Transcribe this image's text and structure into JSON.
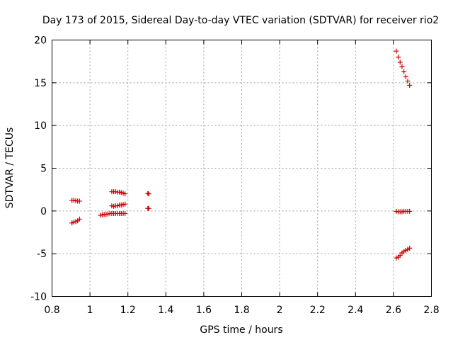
{
  "chart_data": {
    "type": "scatter",
    "title": "Day 173 of 2015, Sidereal Day-to-day VTEC variation (SDTVAR) for receiver rio2",
    "xlabel": "GPS time / hours",
    "ylabel": "SDTVAR / TECUs",
    "xlim": [
      0.8,
      2.8
    ],
    "ylim": [
      -10,
      20
    ],
    "x_ticks": [
      0.8,
      1.0,
      1.2,
      1.4,
      1.6,
      1.8,
      2.0,
      2.2,
      2.4,
      2.6,
      2.8
    ],
    "x_tick_labels": [
      "0.8",
      "1",
      "1.2",
      "1.4",
      "1.6",
      "1.8",
      "2",
      "2.2",
      "2.4",
      "2.6",
      "2.8"
    ],
    "y_ticks": [
      -10,
      -5,
      0,
      5,
      10,
      15,
      20
    ],
    "y_tick_labels": [
      "-10",
      "-5",
      "0",
      "5",
      "10",
      "15",
      "20"
    ],
    "grid": true,
    "marker": "+",
    "color": "#cc0000",
    "series": [
      {
        "name": "rio2",
        "points": [
          [
            0.905,
            1.25
          ],
          [
            0.915,
            1.25
          ],
          [
            0.925,
            1.2
          ],
          [
            0.935,
            1.15
          ],
          [
            0.945,
            1.15
          ],
          [
            0.905,
            -1.4
          ],
          [
            0.915,
            -1.3
          ],
          [
            0.925,
            -1.25
          ],
          [
            0.935,
            -1.15
          ],
          [
            0.945,
            -0.95
          ],
          [
            1.055,
            -0.5
          ],
          [
            1.065,
            -0.45
          ],
          [
            1.075,
            -0.4
          ],
          [
            1.085,
            -0.4
          ],
          [
            1.095,
            -0.35
          ],
          [
            1.105,
            -0.3
          ],
          [
            1.115,
            -0.3
          ],
          [
            1.125,
            -0.3
          ],
          [
            1.135,
            -0.3
          ],
          [
            1.145,
            -0.3
          ],
          [
            1.155,
            -0.3
          ],
          [
            1.165,
            -0.3
          ],
          [
            1.175,
            -0.3
          ],
          [
            1.185,
            -0.3
          ],
          [
            1.115,
            2.25
          ],
          [
            1.125,
            2.25
          ],
          [
            1.135,
            2.25
          ],
          [
            1.145,
            2.2
          ],
          [
            1.155,
            2.2
          ],
          [
            1.165,
            2.15
          ],
          [
            1.175,
            2.1
          ],
          [
            1.185,
            2.0
          ],
          [
            1.115,
            0.6
          ],
          [
            1.125,
            0.55
          ],
          [
            1.135,
            0.6
          ],
          [
            1.145,
            0.6
          ],
          [
            1.155,
            0.7
          ],
          [
            1.165,
            0.7
          ],
          [
            1.175,
            0.75
          ],
          [
            1.185,
            0.8
          ],
          [
            1.305,
            2.05
          ],
          [
            1.31,
            2.0
          ],
          [
            1.305,
            0.3
          ],
          [
            1.31,
            0.3
          ],
          [
            2.615,
            18.7
          ],
          [
            2.625,
            18.0
          ],
          [
            2.635,
            17.4
          ],
          [
            2.645,
            16.9
          ],
          [
            2.655,
            16.3
          ],
          [
            2.665,
            15.7
          ],
          [
            2.675,
            15.2
          ],
          [
            2.685,
            14.7
          ],
          [
            2.615,
            -0.05
          ],
          [
            2.625,
            -0.1
          ],
          [
            2.635,
            -0.1
          ],
          [
            2.645,
            -0.1
          ],
          [
            2.655,
            -0.05
          ],
          [
            2.665,
            -0.05
          ],
          [
            2.675,
            -0.05
          ],
          [
            2.685,
            -0.05
          ],
          [
            2.615,
            -5.5
          ],
          [
            2.625,
            -5.4
          ],
          [
            2.635,
            -5.2
          ],
          [
            2.645,
            -4.9
          ],
          [
            2.655,
            -4.75
          ],
          [
            2.665,
            -4.6
          ],
          [
            2.675,
            -4.5
          ],
          [
            2.685,
            -4.35
          ]
        ]
      }
    ]
  }
}
